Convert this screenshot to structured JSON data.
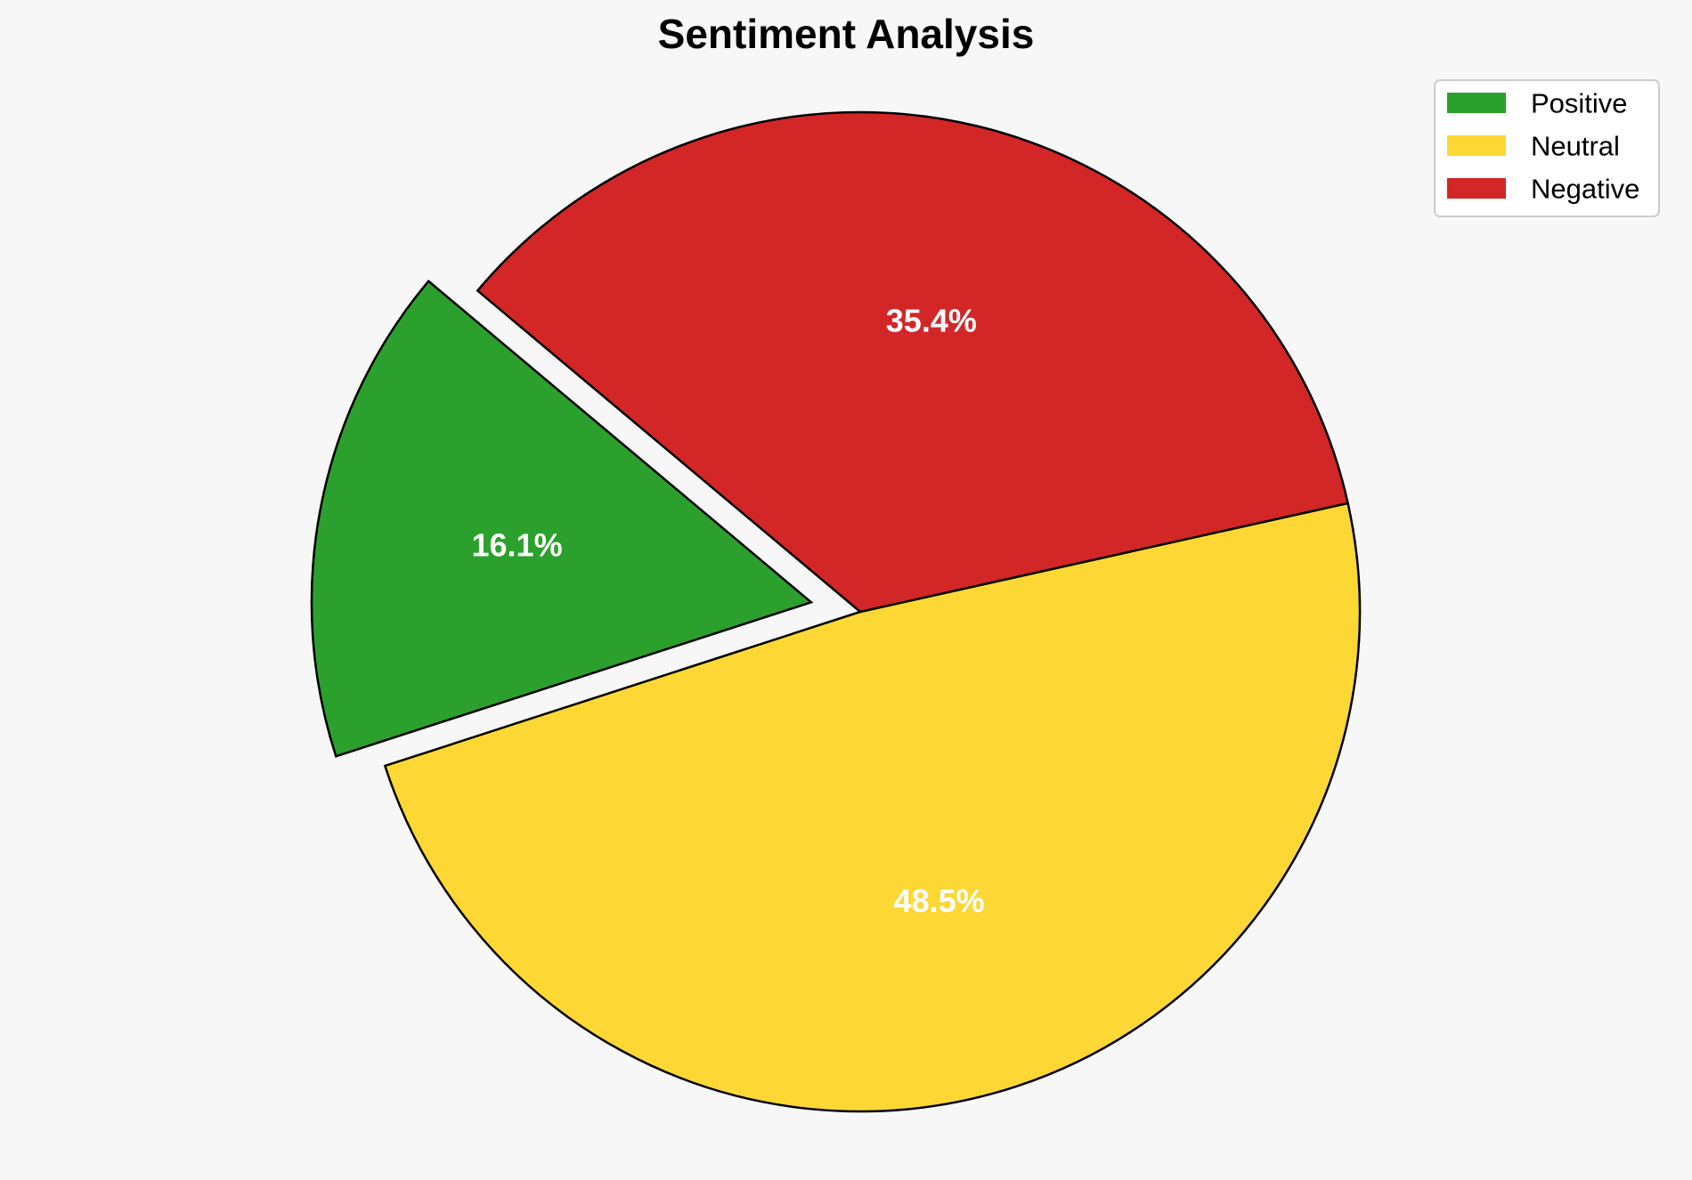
{
  "chart_data": {
    "type": "pie",
    "title": "Sentiment Analysis",
    "categories": [
      "Positive",
      "Neutral",
      "Negative"
    ],
    "values": [
      16.1,
      48.5,
      35.4
    ],
    "value_labels": [
      "16.1%",
      "48.5%",
      "35.4%"
    ],
    "colors": [
      "#2ca02c",
      "#fdd835",
      "#d32626"
    ],
    "edge_color": "#000000",
    "exploded": [
      true,
      false,
      false
    ],
    "legend_placement": "top-right"
  }
}
